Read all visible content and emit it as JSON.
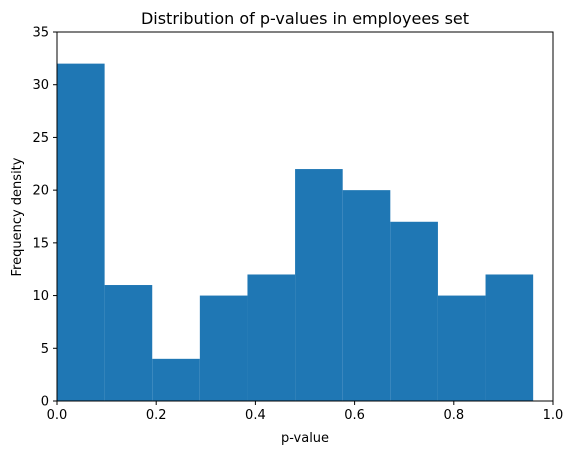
{
  "chart_data": {
    "type": "bar",
    "title": "Distribution of p-values in employees set",
    "xlabel": "p-value",
    "ylabel": "Frequency density",
    "bar_color": "#1f77b4",
    "xlim": [
      0.0,
      1.0
    ],
    "ylim": [
      0,
      35
    ],
    "bins": [
      {
        "x0": 0.0,
        "x1": 0.096,
        "value": 32
      },
      {
        "x0": 0.096,
        "x1": 0.192,
        "value": 11
      },
      {
        "x0": 0.192,
        "x1": 0.288,
        "value": 4
      },
      {
        "x0": 0.288,
        "x1": 0.384,
        "value": 10
      },
      {
        "x0": 0.384,
        "x1": 0.48,
        "value": 12
      },
      {
        "x0": 0.48,
        "x1": 0.576,
        "value": 22
      },
      {
        "x0": 0.576,
        "x1": 0.672,
        "value": 20
      },
      {
        "x0": 0.672,
        "x1": 0.768,
        "value": 17
      },
      {
        "x0": 0.768,
        "x1": 0.864,
        "value": 10
      },
      {
        "x0": 0.864,
        "x1": 0.96,
        "value": 12
      }
    ],
    "x_ticks": [
      {
        "value": 0.0,
        "label": "0.0"
      },
      {
        "value": 0.2,
        "label": "0.2"
      },
      {
        "value": 0.4,
        "label": "0.4"
      },
      {
        "value": 0.6,
        "label": "0.6"
      },
      {
        "value": 0.8,
        "label": "0.8"
      },
      {
        "value": 1.0,
        "label": "1.0"
      }
    ],
    "y_ticks": [
      {
        "value": 0,
        "label": "0"
      },
      {
        "value": 5,
        "label": "5"
      },
      {
        "value": 10,
        "label": "10"
      },
      {
        "value": 15,
        "label": "15"
      },
      {
        "value": 20,
        "label": "20"
      },
      {
        "value": 25,
        "label": "25"
      },
      {
        "value": 30,
        "label": "30"
      },
      {
        "value": 35,
        "label": "35"
      }
    ],
    "grid": false,
    "legend": "none"
  }
}
